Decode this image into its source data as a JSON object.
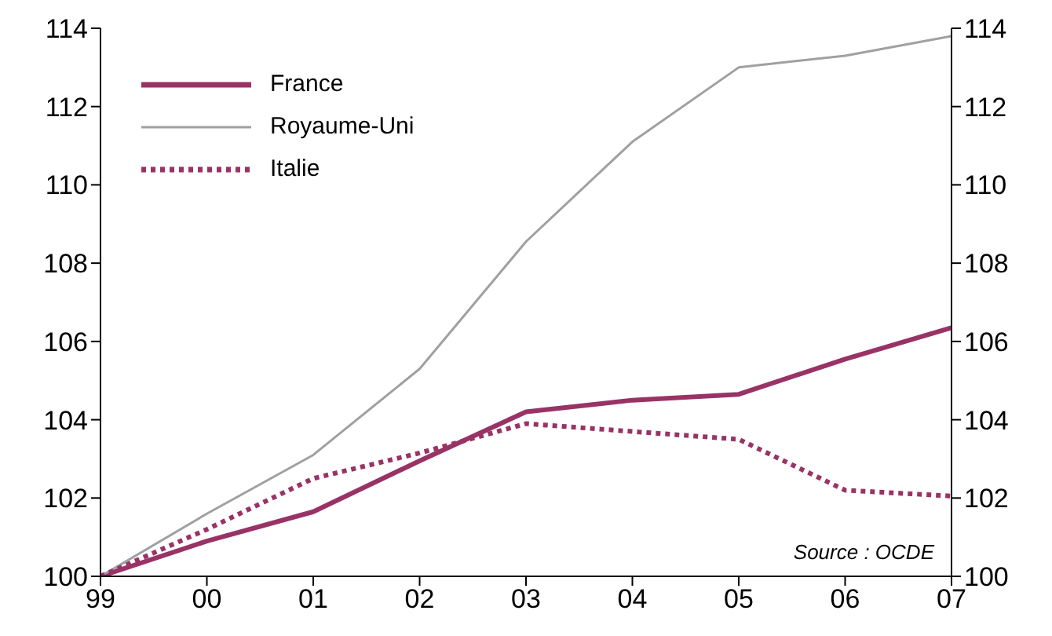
{
  "chart_data": {
    "type": "line",
    "categories": [
      "99",
      "00",
      "01",
      "02",
      "03",
      "04",
      "05",
      "06",
      "07"
    ],
    "series": [
      {
        "name": "France",
        "color": "#993366",
        "line_style": "solid",
        "values": [
          100,
          100.9,
          101.65,
          102.95,
          104.2,
          104.5,
          104.65,
          105.55,
          106.35
        ]
      },
      {
        "name": "Royaume-Uni",
        "color": "#a0a0a0",
        "line_style": "solid",
        "values": [
          100,
          101.6,
          103.1,
          105.3,
          108.55,
          111.1,
          113.0,
          113.3,
          113.8
        ]
      },
      {
        "name": "Italie",
        "color": "#993366",
        "line_style": "dotted",
        "values": [
          100,
          101.2,
          102.5,
          103.15,
          103.9,
          103.7,
          103.5,
          102.2,
          102.05
        ]
      }
    ],
    "ylim": [
      100,
      114
    ],
    "yticks": [
      100,
      102,
      104,
      106,
      108,
      110,
      112,
      114
    ],
    "y2lim": [
      100,
      114
    ],
    "y2ticks": [
      100,
      102,
      104,
      106,
      108,
      110,
      112,
      114
    ],
    "grid": false,
    "legend": "top left",
    "marker": "none",
    "annotations": [
      "Source : OCDE"
    ]
  }
}
